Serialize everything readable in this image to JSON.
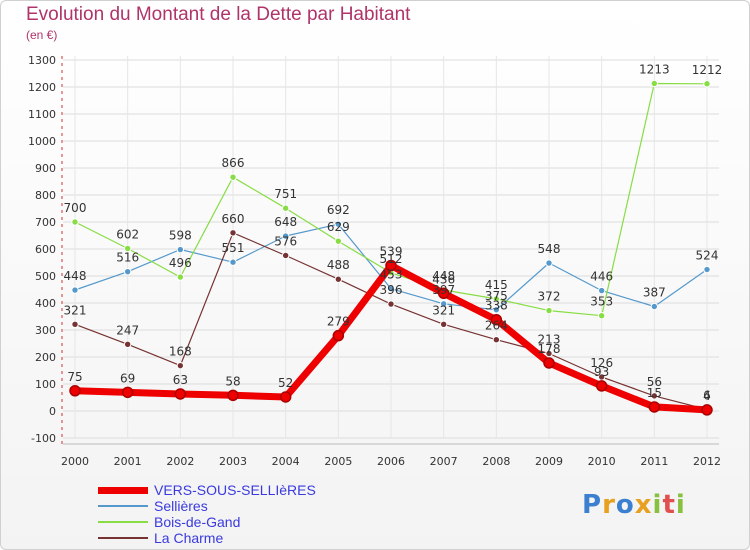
{
  "chart_data": {
    "type": "line",
    "title": "Evolution du Montant de la Dette par Habitant",
    "subtitle": "(en €)",
    "x": [
      2000,
      2001,
      2002,
      2003,
      2004,
      2005,
      2006,
      2007,
      2008,
      2009,
      2010,
      2011,
      2012
    ],
    "ylim": [
      -100,
      1300
    ],
    "yticks": [
      -100,
      0,
      100,
      200,
      300,
      400,
      500,
      600,
      700,
      800,
      900,
      1000,
      1100,
      1200,
      1300
    ],
    "grid": true,
    "legend_position": "bottom-left",
    "series": [
      {
        "name": "VERS-SOUS-SELLIèRES",
        "color": "#ee0000",
        "width": 7,
        "values": [
          75,
          69,
          63,
          58,
          52,
          279,
          539,
          436,
          338,
          178,
          93,
          15,
          4
        ]
      },
      {
        "name": "Sellières",
        "color": "#5599cc",
        "width": 1.2,
        "values": [
          448,
          516,
          598,
          551,
          648,
          692,
          453,
          397,
          375,
          548,
          446,
          387,
          524
        ]
      },
      {
        "name": "Bois-de-Gand",
        "color": "#88dd44",
        "width": 1.2,
        "values": [
          700,
          602,
          496,
          866,
          751,
          629,
          512,
          448,
          415,
          372,
          353,
          1213,
          1212
        ]
      },
      {
        "name": "La Charme",
        "color": "#773333",
        "width": 1.2,
        "values": [
          321,
          247,
          168,
          660,
          576,
          488,
          396,
          321,
          264,
          213,
          126,
          56,
          6
        ]
      }
    ]
  },
  "logo": {
    "text": "Proxiti"
  }
}
